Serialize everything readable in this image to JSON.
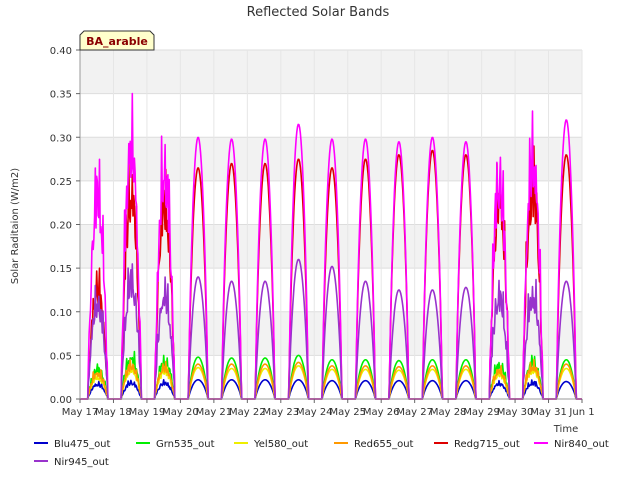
{
  "chart_data": {
    "type": "line",
    "title": "Reflected Solar Bands",
    "badge": "BA_arable",
    "xlabel": "Time",
    "ylabel": "Solar Raditaion (W/m2)",
    "ylim": [
      0,
      0.4
    ],
    "yticks": [
      "0.00",
      "0.05",
      "0.10",
      "0.15",
      "0.20",
      "0.25",
      "0.30",
      "0.35",
      "0.40"
    ],
    "xlim": [
      "2024-05-17",
      "2024-06-01"
    ],
    "xticks": [
      "May 17",
      "May 18",
      "May 19",
      "May 20",
      "May 21",
      "May 22",
      "May 23",
      "May 24",
      "May 25",
      "May 26",
      "May 27",
      "May 28",
      "May 29",
      "May 30",
      "May 31",
      "Jun 1"
    ],
    "grid": true,
    "legend_position": "bottom",
    "day_labels": [
      "May 17",
      "May 18",
      "May 19",
      "May 20",
      "May 21",
      "May 22",
      "May 23",
      "May 24",
      "May 25",
      "May 26",
      "May 27",
      "May 28",
      "May 29",
      "May 30",
      "May 31"
    ],
    "series": [
      {
        "name": "Blu475_out",
        "color": "#0000cc",
        "daily_peaks": [
          0.02,
          0.022,
          0.022,
          0.022,
          0.022,
          0.022,
          0.022,
          0.021,
          0.021,
          0.021,
          0.021,
          0.021,
          0.021,
          0.022,
          0.02
        ]
      },
      {
        "name": "Grn535_out",
        "color": "#00ee00",
        "daily_peaks": [
          0.04,
          0.055,
          0.05,
          0.048,
          0.047,
          0.047,
          0.05,
          0.045,
          0.045,
          0.044,
          0.045,
          0.045,
          0.045,
          0.05,
          0.045
        ]
      },
      {
        "name": "Yel580_out",
        "color": "#eeee00",
        "daily_peaks": [
          0.03,
          0.04,
          0.038,
          0.036,
          0.035,
          0.035,
          0.038,
          0.034,
          0.034,
          0.033,
          0.034,
          0.034,
          0.034,
          0.04,
          0.035
        ]
      },
      {
        "name": "Red655_out",
        "color": "#ff9900",
        "daily_peaks": [
          0.035,
          0.045,
          0.043,
          0.04,
          0.04,
          0.04,
          0.042,
          0.038,
          0.038,
          0.037,
          0.038,
          0.038,
          0.038,
          0.045,
          0.04
        ]
      },
      {
        "name": "Redg715_out",
        "color": "#dd0000",
        "daily_peaks": [
          0.15,
          0.28,
          0.27,
          0.265,
          0.27,
          0.27,
          0.275,
          0.265,
          0.275,
          0.28,
          0.285,
          0.28,
          0.27,
          0.29,
          0.28
        ]
      },
      {
        "name": "Nir840_out",
        "color": "#ff00ff",
        "daily_peaks": [
          0.28,
          0.35,
          0.31,
          0.3,
          0.298,
          0.298,
          0.315,
          0.298,
          0.298,
          0.295,
          0.3,
          0.295,
          0.295,
          0.33,
          0.32
        ]
      },
      {
        "name": "Nir945_out",
        "color": "#9933cc",
        "daily_peaks": [
          0.13,
          0.16,
          0.14,
          0.14,
          0.135,
          0.135,
          0.16,
          0.152,
          0.135,
          0.125,
          0.125,
          0.128,
          0.138,
          0.14,
          0.135
        ]
      }
    ]
  }
}
